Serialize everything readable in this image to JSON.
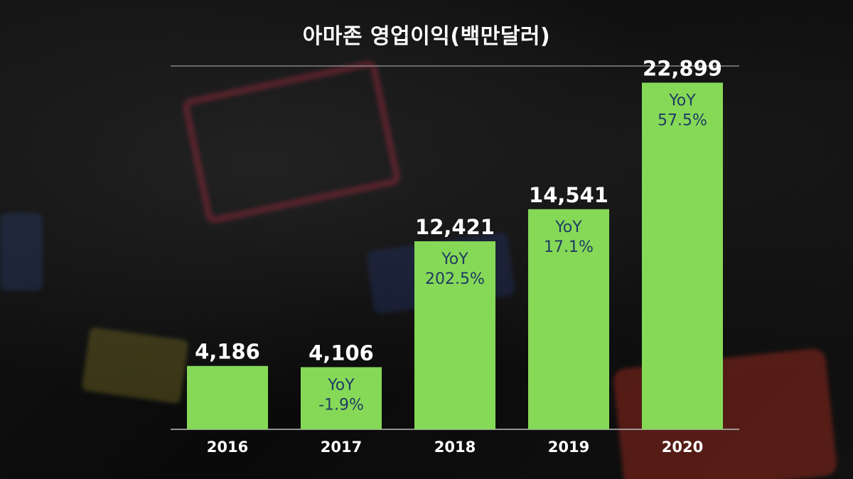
{
  "chart_data": {
    "type": "bar",
    "title": "아마존 영업이익(백만달러)",
    "categories": [
      "2016",
      "2017",
      "2018",
      "2019",
      "2020"
    ],
    "values": [
      4186,
      4106,
      12421,
      14541,
      22899
    ],
    "value_labels": [
      "4,186",
      "4,106",
      "12,421",
      "14,541",
      "22,899"
    ],
    "annotations": [
      null,
      [
        "YoY",
        "-1.9%"
      ],
      [
        "YoY",
        "202.5%"
      ],
      [
        "YoY",
        "17.1%"
      ],
      [
        "YoY",
        "57.5%"
      ]
    ],
    "ylim": [
      0,
      24000
    ],
    "grid": false,
    "bar_color": "#86d957",
    "annotation_color": "#1f3b63"
  }
}
